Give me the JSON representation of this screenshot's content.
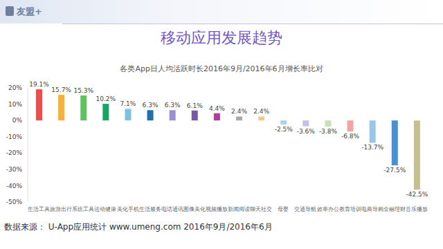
{
  "header": {
    "logo": "友盟+",
    "title": "移动应用发展趋势"
  },
  "source": "数据来源： U-App应用统计 www.umeng.com 2016年9月/2016年6月",
  "chart_data": {
    "type": "bar",
    "title": "各类App日人均活跃时长2016年9月/2016年6月增长率比对",
    "categories": [
      "生活工具",
      "旅游出行",
      "系统工具",
      "运动健康",
      "美化手机",
      "生活服务",
      "电话通讯",
      "图像美化",
      "视频播放",
      "新闻阅读",
      "聊天社交",
      "母婴",
      "交通导航",
      "效率办公",
      "教育培训",
      "电商导购",
      "金融理财",
      "音乐播放"
    ],
    "values": [
      19.1,
      15.7,
      15.3,
      10.2,
      7.1,
      6.3,
      6.3,
      6.1,
      4.4,
      2.4,
      2.4,
      -2.5,
      -3.6,
      -3.8,
      -6.8,
      -13.7,
      -27.5,
      -42.5
    ],
    "value_labels": [
      "19.1%",
      "15.7%",
      "15.3%",
      "10.2%",
      "7.1%",
      "6.3%",
      "6.3%",
      "6.1%",
      "4.4%",
      "2.4%",
      "2.4%",
      "-2.5%",
      "-3.6%",
      "-3.8%",
      "-6.8%",
      "-13.7%",
      "-27.5%",
      "-42.5%"
    ],
    "colors": [
      "#e8504f",
      "#f4b13e",
      "#62bf62",
      "#1aa364",
      "#7dc3df",
      "#1f6fb3",
      "#9d90d2",
      "#7a58a8",
      "#b13c9e",
      "#a9a9a9",
      "#f6c98a",
      "#a6d4ea",
      "#c9bfe1",
      "#c6e3b4",
      "#f2a5a5",
      "#9bc6e8",
      "#4a90d0",
      "#c5bf92"
    ],
    "ylim": [
      -50,
      20
    ],
    "yticks": [
      {
        "value": -50,
        "label": "-50%"
      },
      {
        "value": -40,
        "label": "-40%"
      },
      {
        "value": -30,
        "label": "-30%"
      },
      {
        "value": -20,
        "label": "-20%"
      },
      {
        "value": -10,
        "label": "-10%"
      },
      {
        "value": 0,
        "label": "0%"
      },
      {
        "value": 10,
        "label": "10%"
      },
      {
        "value": 20,
        "label": "20%"
      }
    ],
    "data_labels": true,
    "grid": false
  }
}
